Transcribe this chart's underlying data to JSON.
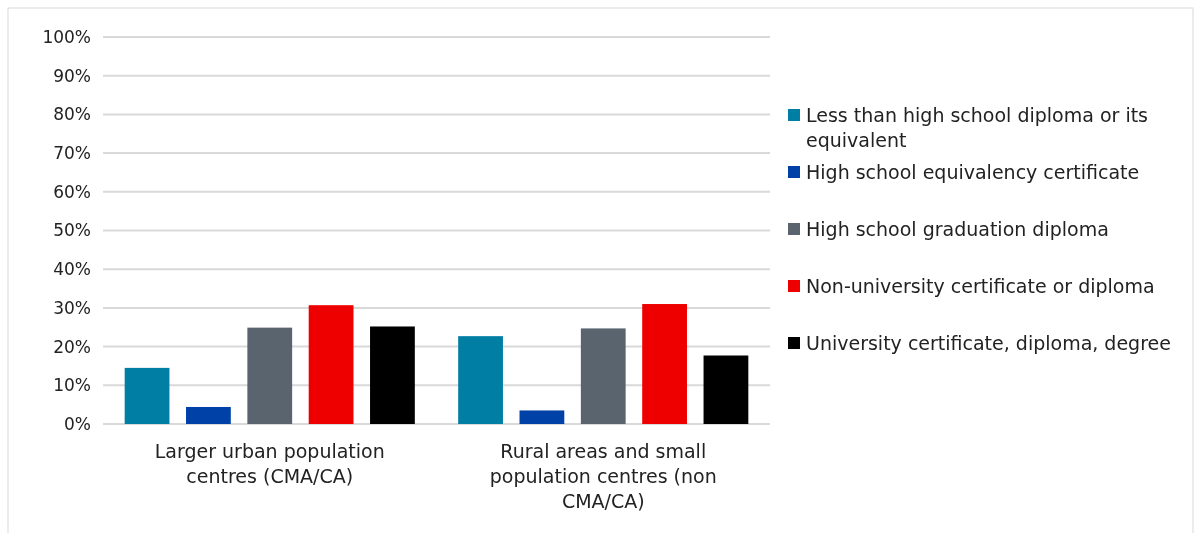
{
  "chart_data": {
    "type": "bar",
    "categories": [
      "Larger urban population centres (CMA/CA)",
      "Rural areas and small population centres (non CMA/CA)"
    ],
    "series": [
      {
        "name": "Less than high school diploma or its equivalent",
        "color": "#007ea3",
        "values": [
          14.5,
          22.7
        ]
      },
      {
        "name": "High school equivalency certificate",
        "color": "#0041a8",
        "values": [
          4.4,
          3.5
        ]
      },
      {
        "name": "High school graduation diploma",
        "color": "#59646e",
        "values": [
          24.9,
          24.7
        ]
      },
      {
        "name": "Non-university certificate or diploma",
        "color": "#ee0000",
        "values": [
          30.7,
          31.0
        ]
      },
      {
        "name": "University certificate, diploma, degree",
        "color": "#000000",
        "values": [
          25.2,
          17.7
        ]
      }
    ],
    "ylim": [
      0,
      100
    ],
    "yticks": [
      {
        "value": 0,
        "label": "0%"
      },
      {
        "value": 10,
        "label": "10%"
      },
      {
        "value": 20,
        "label": "20%"
      },
      {
        "value": 30,
        "label": "30%"
      },
      {
        "value": 40,
        "label": "40%"
      },
      {
        "value": 50,
        "label": "50%"
      },
      {
        "value": 60,
        "label": "60%"
      },
      {
        "value": 70,
        "label": "70%"
      },
      {
        "value": 80,
        "label": "80%"
      },
      {
        "value": 90,
        "label": "90%"
      },
      {
        "value": 100,
        "label": "100%"
      }
    ],
    "grid": "y",
    "legend": "right"
  }
}
